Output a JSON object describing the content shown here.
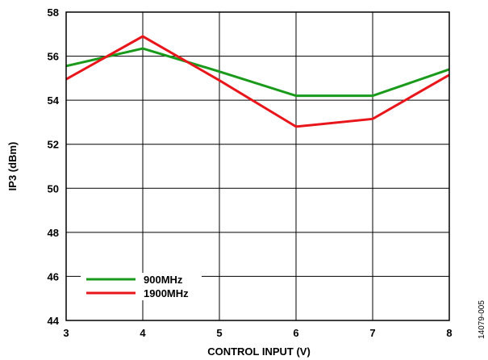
{
  "chart_data": {
    "type": "line",
    "xlabel": "CONTROL INPUT (V)",
    "ylabel": "IP3 (dBm)",
    "x": [
      3,
      4,
      5,
      6,
      7,
      8
    ],
    "xlim": [
      3,
      8
    ],
    "ylim": [
      44,
      58
    ],
    "xticks": [
      "3",
      "4",
      "5",
      "6",
      "7",
      "8"
    ],
    "yticks": [
      "44",
      "46",
      "48",
      "50",
      "52",
      "54",
      "56",
      "58"
    ],
    "grid": true,
    "legend_position": "bottom-left",
    "series": [
      {
        "name": "900MHz",
        "color": "#1a9a1a",
        "values": [
          55.55,
          56.35,
          55.3,
          54.2,
          54.2,
          55.4
        ]
      },
      {
        "name": "1900MHz",
        "color": "#e8161b",
        "values": [
          54.95,
          56.9,
          54.9,
          52.8,
          53.15,
          55.15
        ]
      }
    ]
  },
  "figure_id": "14079-005"
}
